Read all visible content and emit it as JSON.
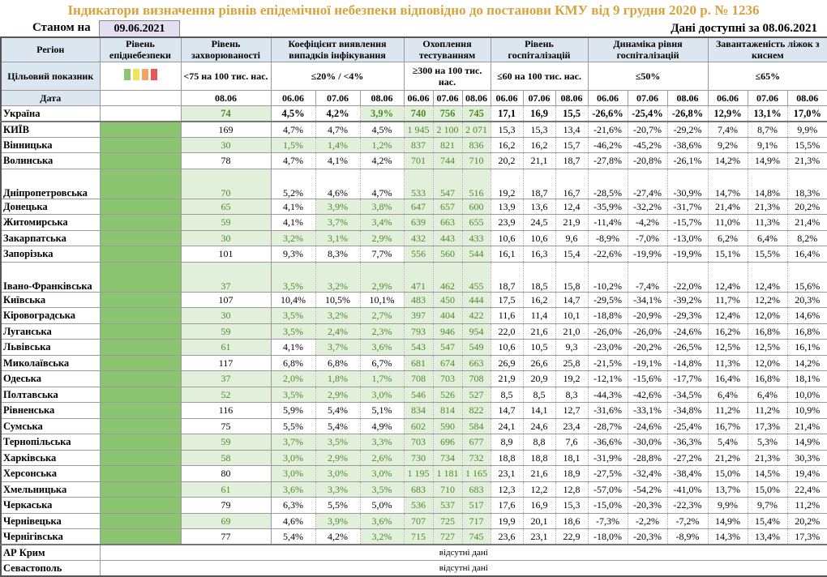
{
  "title": "Індикатори визначення рівнів епідемічної небезпеки відповідно до постанови КМУ від 9 грудня 2020 р. № 1236",
  "as_of_label": "Станом на",
  "as_of_date": "09.06.2021",
  "available_label": "Дані доступні за  08.06.2021",
  "colors": {
    "title": "#d6a33f",
    "header_bg": "#dce6f1",
    "ok_bg": "#e2efda",
    "ok_text": "#4f8a2e",
    "level_green": "#8cc56f",
    "legend": [
      "#8cc56f",
      "#f2e35c",
      "#f4a460",
      "#e05a5a"
    ]
  },
  "headers": {
    "region": "Регіон",
    "level": "Рівень епіднебезпеки",
    "incidence": "Рівень захворюваності",
    "coef": "Коефіцієнт виявлення випадків інфікування",
    "testing": "Охоплення тестуванням",
    "hosp": "Рівень госпіталізацій",
    "dyn": "Динаміка рівня госпіталізацій",
    "beds": "Завантаженість ліжок з киснем"
  },
  "targets": {
    "label": "Цільовий показник",
    "incidence": "<75 на 100 тис. нас.",
    "coef": "≤20% / <4%",
    "testing": "≥300 на 100 тис. нас.",
    "hosp": "≤60 на 100 тис. нас.",
    "dyn": "≤50%",
    "beds": "≤65%"
  },
  "date_label": "Дата",
  "incidence_date": "08.06",
  "dates": [
    "06.06",
    "07.06",
    "08.06"
  ],
  "missing_text": "відсутні дані",
  "ukraine": {
    "region": "Україна",
    "incidence": "74",
    "coef": [
      "4,5%",
      "4,2%",
      "3,9%"
    ],
    "testing": [
      "740",
      "756",
      "745"
    ],
    "hosp": [
      "17,1",
      "16,9",
      "15,5"
    ],
    "dyn": [
      "-26,6%",
      "-25,4%",
      "-26,8%"
    ],
    "beds": [
      "12,9%",
      "13,1%",
      "17,0%"
    ]
  },
  "rows": [
    {
      "region": "КИЇВ",
      "incidence": "169",
      "coef": [
        "4,7%",
        "4,7%",
        "4,5%"
      ],
      "testing": [
        "1 945",
        "2 100",
        "2 071"
      ],
      "hosp": [
        "15,3",
        "15,3",
        "13,4"
      ],
      "dyn": [
        "-21,6%",
        "-20,7%",
        "-29,2%"
      ],
      "beds": [
        "7,4%",
        "8,7%",
        "9,9%"
      ]
    },
    {
      "region": "Вінницька",
      "incidence": "30",
      "coef": [
        "1,5%",
        "1,4%",
        "1,2%"
      ],
      "testing": [
        "837",
        "821",
        "836"
      ],
      "hosp": [
        "16,2",
        "16,2",
        "15,7"
      ],
      "dyn": [
        "-46,2%",
        "-45,2%",
        "-38,6%"
      ],
      "beds": [
        "9,2%",
        "9,1%",
        "15,5%"
      ]
    },
    {
      "region": "Волинська",
      "incidence": "78",
      "coef": [
        "4,7%",
        "4,1%",
        "4,2%"
      ],
      "testing": [
        "701",
        "744",
        "710"
      ],
      "hosp": [
        "20,2",
        "21,1",
        "18,7"
      ],
      "dyn": [
        "-27,8%",
        "-20,8%",
        "-26,1%"
      ],
      "beds": [
        "14,2%",
        "14,9%",
        "21,3%"
      ]
    },
    {
      "region": "Дніпропетровська",
      "incidence": "70",
      "coef": [
        "5,2%",
        "4,6%",
        "4,7%"
      ],
      "testing": [
        "533",
        "547",
        "516"
      ],
      "hosp": [
        "19,2",
        "18,7",
        "16,7"
      ],
      "dyn": [
        "-28,5%",
        "-27,4%",
        "-30,9%"
      ],
      "beds": [
        "14,7%",
        "14,8%",
        "18,3%"
      ]
    },
    {
      "region": "Донецька",
      "incidence": "65",
      "coef": [
        "4,1%",
        "3,9%",
        "3,8%"
      ],
      "testing": [
        "647",
        "657",
        "600"
      ],
      "hosp": [
        "13,9",
        "13,6",
        "12,4"
      ],
      "dyn": [
        "-35,9%",
        "-32,2%",
        "-31,7%"
      ],
      "beds": [
        "21,4%",
        "21,3%",
        "20,2%"
      ]
    },
    {
      "region": "Житомирська",
      "incidence": "59",
      "coef": [
        "4,1%",
        "3,7%",
        "3,4%"
      ],
      "testing": [
        "639",
        "663",
        "655"
      ],
      "hosp": [
        "23,9",
        "24,5",
        "21,9"
      ],
      "dyn": [
        "-11,4%",
        "-4,2%",
        "-15,7%"
      ],
      "beds": [
        "11,0%",
        "11,3%",
        "21,4%"
      ]
    },
    {
      "region": "Закарпатська",
      "incidence": "30",
      "coef": [
        "3,2%",
        "3,1%",
        "2,9%"
      ],
      "testing": [
        "432",
        "443",
        "433"
      ],
      "hosp": [
        "10,6",
        "10,6",
        "9,6"
      ],
      "dyn": [
        "-8,9%",
        "-7,0%",
        "-13,0%"
      ],
      "beds": [
        "6,2%",
        "6,4%",
        "8,2%"
      ]
    },
    {
      "region": "Запорізька",
      "incidence": "101",
      "coef": [
        "9,3%",
        "8,3%",
        "7,7%"
      ],
      "testing": [
        "556",
        "560",
        "544"
      ],
      "hosp": [
        "16,1",
        "16,3",
        "15,4"
      ],
      "dyn": [
        "-22,6%",
        "-19,9%",
        "-19,9%"
      ],
      "beds": [
        "15,1%",
        "15,5%",
        "16,4%"
      ]
    },
    {
      "region": "Івано-Франківська",
      "incidence": "37",
      "coef": [
        "3,5%",
        "3,2%",
        "2,9%"
      ],
      "testing": [
        "471",
        "462",
        "455"
      ],
      "hosp": [
        "18,7",
        "18,5",
        "15,8"
      ],
      "dyn": [
        "-10,2%",
        "-7,4%",
        "-22,0%"
      ],
      "beds": [
        "12,4%",
        "12,4%",
        "15,6%"
      ]
    },
    {
      "region": "Київська",
      "incidence": "107",
      "coef": [
        "10,4%",
        "10,5%",
        "10,1%"
      ],
      "testing": [
        "483",
        "450",
        "444"
      ],
      "hosp": [
        "17,5",
        "16,2",
        "14,7"
      ],
      "dyn": [
        "-29,5%",
        "-34,1%",
        "-39,2%"
      ],
      "beds": [
        "11,7%",
        "12,2%",
        "20,3%"
      ]
    },
    {
      "region": "Кіровоградська",
      "incidence": "30",
      "coef": [
        "3,5%",
        "3,2%",
        "2,7%"
      ],
      "testing": [
        "397",
        "404",
        "422"
      ],
      "hosp": [
        "11,6",
        "11,4",
        "10,1"
      ],
      "dyn": [
        "-18,8%",
        "-20,9%",
        "-29,3%"
      ],
      "beds": [
        "12,4%",
        "12,0%",
        "14,6%"
      ]
    },
    {
      "region": "Луганська",
      "incidence": "59",
      "coef": [
        "3,5%",
        "2,4%",
        "2,3%"
      ],
      "testing": [
        "793",
        "946",
        "954"
      ],
      "hosp": [
        "22,0",
        "21,6",
        "21,0"
      ],
      "dyn": [
        "-26,0%",
        "-26,0%",
        "-24,6%"
      ],
      "beds": [
        "16,2%",
        "16,8%",
        "16,8%"
      ]
    },
    {
      "region": "Львівська",
      "incidence": "61",
      "coef": [
        "4,1%",
        "3,7%",
        "3,6%"
      ],
      "testing": [
        "543",
        "547",
        "549"
      ],
      "hosp": [
        "10,6",
        "10,5",
        "9,3"
      ],
      "dyn": [
        "-23,0%",
        "-20,2%",
        "-26,5%"
      ],
      "beds": [
        "12,5%",
        "12,5%",
        "16,1%"
      ]
    },
    {
      "region": "Миколаївська",
      "incidence": "117",
      "coef": [
        "6,8%",
        "6,8%",
        "6,7%"
      ],
      "testing": [
        "681",
        "674",
        "663"
      ],
      "hosp": [
        "26,9",
        "26,6",
        "25,8"
      ],
      "dyn": [
        "-21,5%",
        "-19,1%",
        "-14,8%"
      ],
      "beds": [
        "11,3%",
        "12,0%",
        "14,2%"
      ]
    },
    {
      "region": "Одеська",
      "incidence": "37",
      "coef": [
        "2,0%",
        "1,8%",
        "1,7%"
      ],
      "testing": [
        "708",
        "703",
        "708"
      ],
      "hosp": [
        "21,9",
        "20,9",
        "19,2"
      ],
      "dyn": [
        "-12,1%",
        "-15,6%",
        "-17,7%"
      ],
      "beds": [
        "16,4%",
        "16,8%",
        "18,1%"
      ]
    },
    {
      "region": "Полтавська",
      "incidence": "52",
      "coef": [
        "3,5%",
        "2,9%",
        "3,0%"
      ],
      "testing": [
        "546",
        "526",
        "527"
      ],
      "hosp": [
        "8,5",
        "8,5",
        "8,3"
      ],
      "dyn": [
        "-44,3%",
        "-42,6%",
        "-34,5%"
      ],
      "beds": [
        "6,4%",
        "6,4%",
        "10,0%"
      ]
    },
    {
      "region": "Рівненська",
      "incidence": "116",
      "coef": [
        "5,9%",
        "5,4%",
        "5,1%"
      ],
      "testing": [
        "834",
        "814",
        "822"
      ],
      "hosp": [
        "14,7",
        "14,1",
        "12,7"
      ],
      "dyn": [
        "-31,6%",
        "-33,1%",
        "-34,8%"
      ],
      "beds": [
        "11,2%",
        "11,2%",
        "10,9%"
      ]
    },
    {
      "region": "Сумська",
      "incidence": "75",
      "coef": [
        "5,5%",
        "5,4%",
        "4,9%"
      ],
      "testing": [
        "602",
        "590",
        "584"
      ],
      "hosp": [
        "24,1",
        "24,6",
        "23,4"
      ],
      "dyn": [
        "-28,7%",
        "-24,6%",
        "-25,4%"
      ],
      "beds": [
        "16,7%",
        "17,3%",
        "21,4%"
      ]
    },
    {
      "region": "Тернопільська",
      "incidence": "59",
      "coef": [
        "3,7%",
        "3,5%",
        "3,3%"
      ],
      "testing": [
        "703",
        "696",
        "677"
      ],
      "hosp": [
        "8,9",
        "8,8",
        "7,6"
      ],
      "dyn": [
        "-36,6%",
        "-30,0%",
        "-36,3%"
      ],
      "beds": [
        "5,4%",
        "5,3%",
        "14,9%"
      ]
    },
    {
      "region": "Харківська",
      "incidence": "58",
      "coef": [
        "3,0%",
        "2,9%",
        "2,6%"
      ],
      "testing": [
        "730",
        "734",
        "732"
      ],
      "hosp": [
        "18,8",
        "18,8",
        "18,1"
      ],
      "dyn": [
        "-31,9%",
        "-28,8%",
        "-27,2%"
      ],
      "beds": [
        "21,2%",
        "21,3%",
        "30,3%"
      ]
    },
    {
      "region": "Херсонська",
      "incidence": "80",
      "coef": [
        "3,0%",
        "3,0%",
        "3,0%"
      ],
      "testing": [
        "1 195",
        "1 181",
        "1 165"
      ],
      "hosp": [
        "23,1",
        "21,6",
        "18,9"
      ],
      "dyn": [
        "-27,5%",
        "-32,4%",
        "-38,4%"
      ],
      "beds": [
        "15,0%",
        "14,5%",
        "19,4%"
      ]
    },
    {
      "region": "Хмельницька",
      "incidence": "61",
      "coef": [
        "3,6%",
        "3,3%",
        "3,5%"
      ],
      "testing": [
        "683",
        "710",
        "683"
      ],
      "hosp": [
        "12,3",
        "12,2",
        "12,8"
      ],
      "dyn": [
        "-57,0%",
        "-54,2%",
        "-41,0%"
      ],
      "beds": [
        "13,7%",
        "15,0%",
        "22,4%"
      ]
    },
    {
      "region": "Черкаська",
      "incidence": "79",
      "coef": [
        "6,3%",
        "5,5%",
        "5,0%"
      ],
      "testing": [
        "536",
        "537",
        "517"
      ],
      "hosp": [
        "17,6",
        "16,9",
        "15,3"
      ],
      "dyn": [
        "-15,0%",
        "-20,3%",
        "-22,3%"
      ],
      "beds": [
        "9,9%",
        "9,7%",
        "11,2%"
      ]
    },
    {
      "region": "Чернівецька",
      "incidence": "69",
      "coef": [
        "4,6%",
        "3,9%",
        "3,6%"
      ],
      "testing": [
        "707",
        "725",
        "717"
      ],
      "hosp": [
        "19,9",
        "20,1",
        "18,6"
      ],
      "dyn": [
        "-7,3%",
        "-2,2%",
        "-7,2%"
      ],
      "beds": [
        "14,9%",
        "15,4%",
        "20,2%"
      ]
    },
    {
      "region": "Чернігівська",
      "incidence": "77",
      "coef": [
        "5,4%",
        "4,2%",
        "3,2%"
      ],
      "testing": [
        "715",
        "727",
        "745"
      ],
      "hosp": [
        "23,6",
        "23,1",
        "22,9"
      ],
      "dyn": [
        "-18,0%",
        "-20,3%",
        "-8,9%"
      ],
      "beds": [
        "14,3%",
        "13,4%",
        "17,3%"
      ]
    }
  ],
  "missing_rows": [
    {
      "region": "АР Крим"
    },
    {
      "region": "Севастополь"
    }
  ]
}
